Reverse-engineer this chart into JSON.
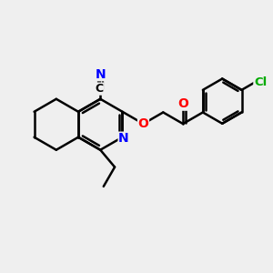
{
  "bg_color": "#efefef",
  "bond_color": "#000000",
  "bond_width": 1.8,
  "atom_colors": {
    "N": "#0000ff",
    "O": "#ff0000",
    "Cl": "#00aa00",
    "C": "#000000"
  },
  "font_size": 10,
  "figsize": [
    3.0,
    3.0
  ],
  "dpi": 100
}
